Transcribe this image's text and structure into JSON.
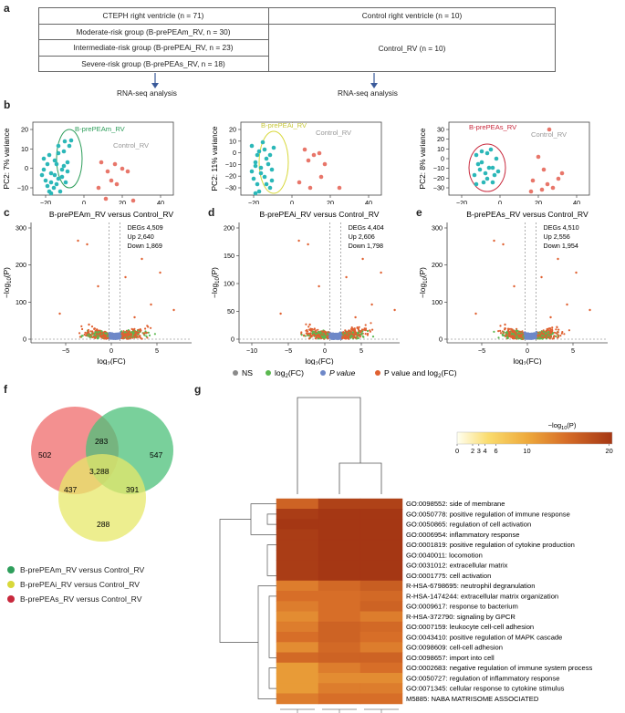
{
  "panel_labels": {
    "a": "a",
    "b": "b",
    "c": "c",
    "d": "d",
    "e": "e",
    "f": "f",
    "g": "g"
  },
  "table": {
    "header_left": "CTEPH right ventricle (n = 71)",
    "header_right": "Control right ventricle (n = 10)",
    "rows_left": [
      "Moderate-risk group (B-prePEAm_RV, n = 30)",
      "Intermediate-risk group (B-prePEAi_RV, n = 23)",
      "Severe-risk group (B-prePEAs_RV, n = 18)"
    ],
    "right_body": "Control_RV (n = 10)",
    "arrow_left_label": "RNA-seq analysis",
    "arrow_right_label": "RNA-seq analysis"
  },
  "colors": {
    "control": "#e8766a",
    "moderate": "#2bb7b8",
    "ellipse_m": "#2e9e5b",
    "ellipse_i": "#d8d83a",
    "ellipse_s": "#c8283c",
    "ns": "#8a8a8a",
    "log2fc": "#5ab84f",
    "pval": "#6e88c8",
    "both": "#e06030",
    "venn_m": "#4cc07a",
    "venn_i": "#e7e86a",
    "venn_s": "#ef6b6b"
  },
  "pca": [
    {
      "group_label": "B-prePEAm_RV",
      "control_label": "Control_RV",
      "xlabel": "PC1: 32% variance",
      "ylabel": "PC2: 7% variance",
      "yticks": [
        "20",
        "10",
        "0",
        "−10"
      ],
      "xticks": [
        "−20",
        "0",
        "20",
        "40"
      ]
    },
    {
      "group_label": "B-prePEAi_RV",
      "control_label": "Control_RV",
      "xlabel": "PC1: 30% variance",
      "ylabel": "PC2: 11% variance",
      "yticks": [
        "20",
        "10",
        "0",
        "−10",
        "−20",
        "−30"
      ],
      "xticks": [
        "−20",
        "0",
        "20",
        "40"
      ]
    },
    {
      "group_label": "B-prePEAs_RV",
      "control_label": "Control_RV",
      "xlabel": "PC1: 36% variance",
      "ylabel": "PC2: 8% variance",
      "yticks": [
        "30",
        "20",
        "10",
        "0",
        "−10",
        "−20",
        "−30"
      ],
      "xticks": [
        "−20",
        "0",
        "20",
        "40"
      ]
    }
  ],
  "volcano": [
    {
      "title": "B-prePEAm_RV versus Control_RV",
      "degs": "DEGs 4,509",
      "up": "Up 2,640",
      "down": "Down 1,869",
      "yticks": [
        "300",
        "200",
        "100",
        "0"
      ],
      "xticks": [
        "−5",
        "0",
        "5"
      ]
    },
    {
      "title": "B-prePEAi_RV versus Control_RV",
      "degs": "DEGs 4,404",
      "up": "Up 2,606",
      "down": "Down 1,798",
      "yticks": [
        "200",
        "150",
        "100",
        "50",
        "0"
      ],
      "xticks": [
        "−10",
        "−5",
        "0",
        "5"
      ]
    },
    {
      "title": "B-prePEAs_RV versus Control_RV",
      "degs": "DEGs 4,510",
      "up": "Up 2,556",
      "down": "Down 1,954",
      "yticks": [
        "300",
        "200",
        "100",
        "0"
      ],
      "xticks": [
        "−5",
        "0",
        "5"
      ]
    }
  ],
  "volcano_axis": {
    "ylabel_main": "−log",
    "ylabel_sub": "10",
    "ylabel_tail": "(P)",
    "xlabel_main": "log",
    "xlabel_sub": "2",
    "xlabel_tail": "(FC)"
  },
  "volcano_legend": {
    "ns": "NS",
    "log2fc": "log",
    "log2fc_sub": "2",
    "log2fc_tail": "(FC)",
    "pval": "P value",
    "both": "P value and log",
    "both_sub": "2",
    "both_tail": "(FC)"
  },
  "venn": {
    "only_m": "547",
    "only_s": "502",
    "only_i": "288",
    "ms": "283",
    "si": "437",
    "mi": "391",
    "all": "3,288"
  },
  "venn_legend": [
    "B-prePEAm_RV versus Control_RV",
    "B-prePEAi_RV versus Control_RV",
    "B-prePEAs_RV versus Control_RV"
  ],
  "heatmap": {
    "colorbar_title": "−log",
    "colorbar_sub": "10",
    "colorbar_tail": "(P)",
    "colorbar_ticks": [
      "0",
      "2",
      "3",
      "4",
      "6",
      "10",
      "20"
    ],
    "terms": [
      "GO:0098552: side of membrane",
      "GO:0050778: positive regulation of immune response",
      "GO:0050865: regulation of cell activation",
      "GO:0006954: inflammatory response",
      "GO:0001819: positive regulation of cytokine production",
      "GO:0040011: locomotion",
      "GO:0031012: extracellular matrix",
      "GO:0001775: cell activation",
      "R-HSA-6798695: neutrophil degranulation",
      "R-HSA-1474244: extracellular matrix organization",
      "GO:0009617: response to bacterium",
      "R-HSA-372790: signaling by GPCR",
      "GO:0007159: leukocyte cell-cell adhesion",
      "GO:0043410: positive regulation of MAPK cascade",
      "GO:0098609: cell-cell adhesion",
      "GO:0098657: import into cell",
      "GO:0002683: negative regulation of immune system process",
      "GO:0050727: regulation of inflammatory response",
      "GO:0071345: cellular response to cytokine stimulus",
      "M5885: NABA MATRISOME ASSOCIATED"
    ],
    "values": [
      [
        12,
        18,
        18
      ],
      [
        19,
        20,
        20
      ],
      [
        20,
        20,
        20
      ],
      [
        19,
        20,
        20
      ],
      [
        19,
        20,
        20
      ],
      [
        19,
        20,
        20
      ],
      [
        19,
        20,
        20
      ],
      [
        19,
        20,
        20
      ],
      [
        9,
        11,
        13
      ],
      [
        10,
        10,
        11
      ],
      [
        9,
        10,
        12
      ],
      [
        8,
        10,
        9
      ],
      [
        9,
        12,
        11
      ],
      [
        10,
        12,
        10
      ],
      [
        8,
        11,
        9
      ],
      [
        11,
        12,
        12
      ],
      [
        7,
        9,
        10
      ],
      [
        7,
        8,
        8
      ],
      [
        7,
        9,
        9
      ],
      [
        9,
        10,
        10
      ]
    ],
    "column_labels": [
      "B-prePEAm_RV versus Control_RV",
      "B-prePEAi_RV versus Control_RV",
      "B-prePEAs_RV versus Control_RV"
    ]
  }
}
